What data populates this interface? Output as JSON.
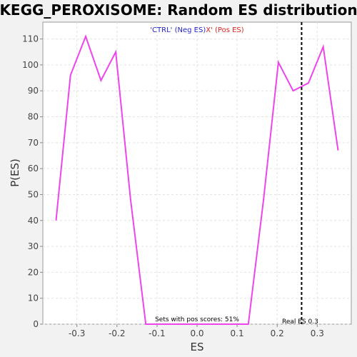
{
  "chart_data": {
    "type": "line",
    "title": "KEGG_PEROXISOME: Random ES distribution",
    "xlabel": "ES",
    "ylabel": "P(ES)",
    "xlim": [
      -0.385,
      0.385
    ],
    "ylim": [
      0,
      116.5
    ],
    "xticks": [
      -0.3,
      -0.2,
      -0.1,
      0.0,
      0.1,
      0.2,
      0.3
    ],
    "xtick_labels": [
      "-0.3",
      "-0.2",
      "-0.1",
      "0.0",
      "0.1",
      "0.2",
      "0.3"
    ],
    "yticks": [
      0,
      10,
      20,
      30,
      40,
      50,
      60,
      70,
      80,
      90,
      100,
      110
    ],
    "ytick_labels": [
      "0",
      "10",
      "20",
      "30",
      "40",
      "50",
      "60",
      "70",
      "80",
      "90",
      "100",
      "110"
    ],
    "grid": true,
    "legend_position": "top-center",
    "legend": [
      {
        "text": "'CTRL' (Neg ES)",
        "color": "#2222cc"
      },
      {
        "text": "X' (Pos ES)",
        "color": "#dd2222"
      }
    ],
    "series": [
      {
        "color": "#ee44ee",
        "x": [
          -0.352,
          -0.316,
          -0.278,
          -0.24,
          -0.203,
          -0.166,
          -0.128,
          0.128,
          0.166,
          0.203,
          0.24,
          0.278,
          0.315,
          0.352
        ],
        "y": [
          40,
          96,
          111,
          94,
          105,
          48,
          0,
          0,
          48,
          101,
          90,
          93,
          107,
          67
        ]
      }
    ],
    "real_es_line": {
      "x": 0.261,
      "label": "Real ES 0.3",
      "color": "#000000"
    },
    "annotation": "Sets with pos scores: 51%"
  }
}
